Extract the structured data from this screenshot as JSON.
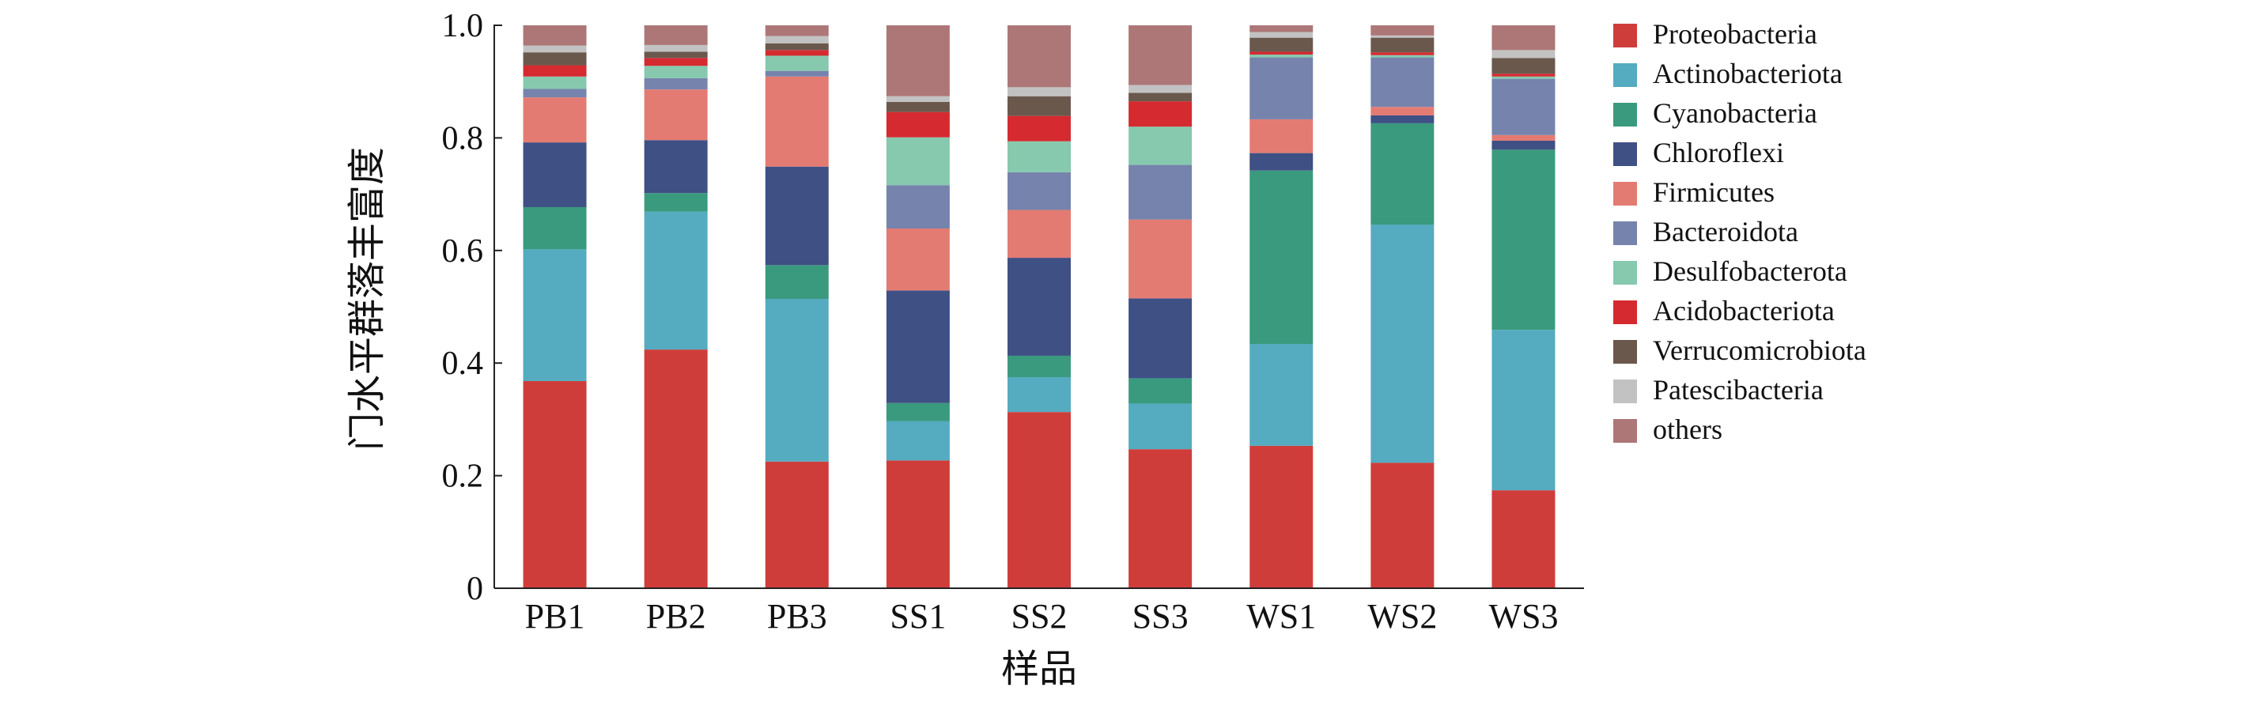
{
  "chart_data": {
    "type": "bar",
    "stacked": true,
    "title": "",
    "xlabel": "样品",
    "ylabel": "门水平群落丰富度",
    "ylim": [
      0,
      1.0
    ],
    "yticks": [
      0,
      0.2,
      0.4,
      0.6,
      0.8,
      1.0
    ],
    "ytick_labels": [
      "0",
      "0.2",
      "0.4",
      "0.6",
      "0.8",
      "1.0"
    ],
    "grid": false,
    "legend": "right",
    "categories": [
      "PB1",
      "PB2",
      "PB3",
      "SS1",
      "SS2",
      "SS3",
      "WS1",
      "WS2",
      "WS3"
    ],
    "series": [
      {
        "name": "Proteobacteria",
        "color": "#CF3D3B",
        "values": [
          0.368,
          0.424,
          0.225,
          0.227,
          0.313,
          0.247,
          0.253,
          0.223,
          0.174
        ]
      },
      {
        "name": "Actinobacteriota",
        "color": "#55ABC0",
        "values": [
          0.234,
          0.245,
          0.289,
          0.07,
          0.062,
          0.081,
          0.181,
          0.423,
          0.285
        ]
      },
      {
        "name": "Cyanobacteria",
        "color": "#3A9A7E",
        "values": [
          0.075,
          0.033,
          0.06,
          0.032,
          0.038,
          0.045,
          0.308,
          0.18,
          0.32
        ]
      },
      {
        "name": "Chloroflexi",
        "color": "#3F5085",
        "values": [
          0.115,
          0.094,
          0.175,
          0.2,
          0.174,
          0.142,
          0.031,
          0.014,
          0.016
        ]
      },
      {
        "name": "Firmicutes",
        "color": "#E47B72",
        "values": [
          0.08,
          0.09,
          0.16,
          0.11,
          0.085,
          0.14,
          0.06,
          0.015,
          0.01
        ]
      },
      {
        "name": "Bacteroidota",
        "color": "#7683AC",
        "values": [
          0.015,
          0.02,
          0.01,
          0.077,
          0.067,
          0.097,
          0.11,
          0.088,
          0.1
        ]
      },
      {
        "name": "Desulfobacterota",
        "color": "#86C9AE",
        "values": [
          0.022,
          0.022,
          0.027,
          0.085,
          0.055,
          0.068,
          0.005,
          0.004,
          0.004
        ]
      },
      {
        "name": "Acidobacteriota",
        "color": "#D52A30",
        "values": [
          0.02,
          0.014,
          0.01,
          0.045,
          0.045,
          0.045,
          0.005,
          0.005,
          0.005
        ]
      },
      {
        "name": "Verrucomicrobiota",
        "color": "#6B584D",
        "values": [
          0.023,
          0.011,
          0.012,
          0.018,
          0.035,
          0.015,
          0.025,
          0.026,
          0.028
        ]
      },
      {
        "name": "Patescibacteria",
        "color": "#C2C2C2",
        "values": [
          0.012,
          0.012,
          0.013,
          0.01,
          0.016,
          0.014,
          0.01,
          0.004,
          0.014
        ]
      },
      {
        "name": "others",
        "color": "#AD7777",
        "values": [
          0.036,
          0.035,
          0.019,
          0.126,
          0.11,
          0.106,
          0.012,
          0.018,
          0.044
        ]
      }
    ]
  }
}
